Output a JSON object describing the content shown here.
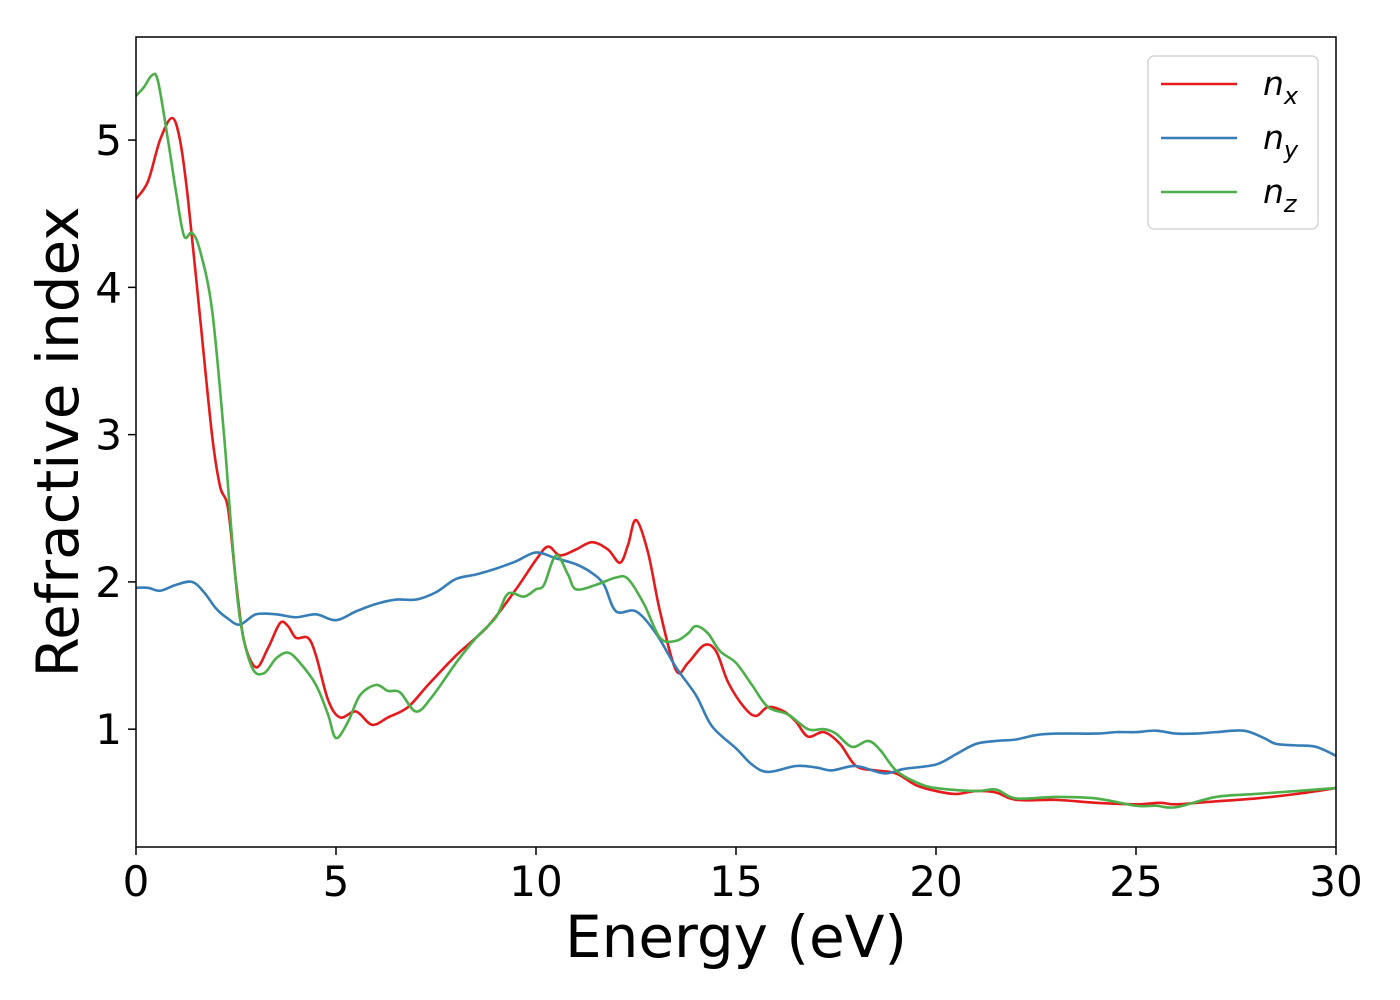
{
  "chart_data": {
    "type": "line",
    "title": "",
    "xlabel": "Energy (eV)",
    "ylabel": "Refractive index",
    "xlim": [
      0,
      30
    ],
    "ylim": [
      0.2,
      5.7
    ],
    "xticks": [
      0,
      5,
      10,
      15,
      20,
      25,
      30
    ],
    "yticks": [
      1,
      2,
      3,
      4,
      5
    ],
    "grid": false,
    "legend_position": "top-right",
    "series": [
      {
        "name": "n_x",
        "label_base": "n",
        "label_sub": "x",
        "color": "#e41a1c",
        "points": [
          [
            0,
            4.6
          ],
          [
            0.3,
            4.72
          ],
          [
            0.6,
            5.0
          ],
          [
            0.9,
            5.15
          ],
          [
            1.1,
            5.0
          ],
          [
            1.3,
            4.6
          ],
          [
            1.6,
            3.8
          ],
          [
            1.9,
            3.0
          ],
          [
            2.1,
            2.65
          ],
          [
            2.3,
            2.5
          ],
          [
            2.5,
            2.0
          ],
          [
            2.7,
            1.6
          ],
          [
            3.0,
            1.42
          ],
          [
            3.3,
            1.55
          ],
          [
            3.6,
            1.72
          ],
          [
            3.8,
            1.7
          ],
          [
            4.0,
            1.62
          ],
          [
            4.3,
            1.62
          ],
          [
            4.5,
            1.5
          ],
          [
            4.8,
            1.2
          ],
          [
            5.1,
            1.08
          ],
          [
            5.5,
            1.12
          ],
          [
            5.9,
            1.03
          ],
          [
            6.3,
            1.08
          ],
          [
            6.8,
            1.15
          ],
          [
            7.3,
            1.3
          ],
          [
            8.0,
            1.5
          ],
          [
            8.8,
            1.7
          ],
          [
            9.5,
            1.95
          ],
          [
            10.0,
            2.15
          ],
          [
            10.3,
            2.24
          ],
          [
            10.6,
            2.18
          ],
          [
            11.0,
            2.22
          ],
          [
            11.4,
            2.27
          ],
          [
            11.8,
            2.22
          ],
          [
            12.1,
            2.13
          ],
          [
            12.3,
            2.25
          ],
          [
            12.5,
            2.42
          ],
          [
            12.8,
            2.2
          ],
          [
            13.1,
            1.8
          ],
          [
            13.5,
            1.4
          ],
          [
            13.8,
            1.45
          ],
          [
            14.2,
            1.57
          ],
          [
            14.5,
            1.53
          ],
          [
            14.8,
            1.32
          ],
          [
            15.2,
            1.15
          ],
          [
            15.5,
            1.09
          ],
          [
            15.8,
            1.15
          ],
          [
            16.2,
            1.12
          ],
          [
            16.5,
            1.05
          ],
          [
            16.8,
            0.95
          ],
          [
            17.2,
            0.98
          ],
          [
            17.6,
            0.9
          ],
          [
            18.0,
            0.75
          ],
          [
            18.5,
            0.72
          ],
          [
            19.0,
            0.7
          ],
          [
            19.5,
            0.62
          ],
          [
            20.0,
            0.58
          ],
          [
            20.5,
            0.56
          ],
          [
            21.0,
            0.58
          ],
          [
            21.5,
            0.57
          ],
          [
            22.0,
            0.52
          ],
          [
            23.0,
            0.52
          ],
          [
            24.0,
            0.5
          ],
          [
            25.0,
            0.49
          ],
          [
            25.6,
            0.5
          ],
          [
            26.0,
            0.49
          ],
          [
            27.0,
            0.51
          ],
          [
            28.0,
            0.53
          ],
          [
            29.0,
            0.56
          ],
          [
            30.0,
            0.6
          ]
        ]
      },
      {
        "name": "n_y",
        "label_base": "n",
        "label_sub": "y",
        "color": "#377eb8",
        "points": [
          [
            0,
            1.96
          ],
          [
            0.3,
            1.96
          ],
          [
            0.6,
            1.94
          ],
          [
            1.0,
            1.98
          ],
          [
            1.4,
            2.0
          ],
          [
            1.7,
            1.93
          ],
          [
            2.0,
            1.82
          ],
          [
            2.3,
            1.75
          ],
          [
            2.6,
            1.71
          ],
          [
            3.0,
            1.78
          ],
          [
            3.5,
            1.78
          ],
          [
            4.0,
            1.76
          ],
          [
            4.5,
            1.78
          ],
          [
            5.0,
            1.74
          ],
          [
            5.5,
            1.8
          ],
          [
            6.0,
            1.85
          ],
          [
            6.5,
            1.88
          ],
          [
            7.0,
            1.88
          ],
          [
            7.5,
            1.93
          ],
          [
            8.0,
            2.02
          ],
          [
            8.5,
            2.05
          ],
          [
            9.0,
            2.09
          ],
          [
            9.5,
            2.14
          ],
          [
            10.0,
            2.2
          ],
          [
            10.5,
            2.16
          ],
          [
            11.0,
            2.12
          ],
          [
            11.4,
            2.06
          ],
          [
            11.7,
            1.98
          ],
          [
            12.0,
            1.8
          ],
          [
            12.5,
            1.8
          ],
          [
            13.0,
            1.65
          ],
          [
            13.5,
            1.42
          ],
          [
            14.0,
            1.23
          ],
          [
            14.4,
            1.02
          ],
          [
            15.0,
            0.87
          ],
          [
            15.4,
            0.76
          ],
          [
            15.8,
            0.71
          ],
          [
            16.5,
            0.75
          ],
          [
            17.0,
            0.74
          ],
          [
            17.4,
            0.72
          ],
          [
            18.0,
            0.75
          ],
          [
            18.7,
            0.7
          ],
          [
            19.2,
            0.73
          ],
          [
            20.0,
            0.76
          ],
          [
            20.5,
            0.83
          ],
          [
            21.0,
            0.9
          ],
          [
            21.5,
            0.92
          ],
          [
            22.0,
            0.93
          ],
          [
            22.5,
            0.96
          ],
          [
            23.0,
            0.97
          ],
          [
            24.0,
            0.97
          ],
          [
            24.5,
            0.98
          ],
          [
            25.0,
            0.98
          ],
          [
            25.5,
            0.99
          ],
          [
            26.0,
            0.97
          ],
          [
            26.5,
            0.97
          ],
          [
            27.0,
            0.98
          ],
          [
            27.7,
            0.99
          ],
          [
            28.2,
            0.94
          ],
          [
            28.5,
            0.9
          ],
          [
            29.0,
            0.89
          ],
          [
            29.5,
            0.88
          ],
          [
            30.0,
            0.82
          ]
        ]
      },
      {
        "name": "n_z",
        "label_base": "n",
        "label_sub": "z",
        "color": "#4daf4a",
        "points": [
          [
            0,
            5.3
          ],
          [
            0.2,
            5.36
          ],
          [
            0.4,
            5.44
          ],
          [
            0.55,
            5.4
          ],
          [
            0.8,
            5.0
          ],
          [
            1.0,
            4.65
          ],
          [
            1.2,
            4.35
          ],
          [
            1.4,
            4.37
          ],
          [
            1.6,
            4.25
          ],
          [
            1.9,
            3.85
          ],
          [
            2.2,
            3.0
          ],
          [
            2.4,
            2.3
          ],
          [
            2.6,
            1.75
          ],
          [
            2.9,
            1.42
          ],
          [
            3.2,
            1.38
          ],
          [
            3.5,
            1.48
          ],
          [
            3.8,
            1.52
          ],
          [
            4.1,
            1.45
          ],
          [
            4.5,
            1.3
          ],
          [
            4.8,
            1.1
          ],
          [
            5.0,
            0.94
          ],
          [
            5.3,
            1.05
          ],
          [
            5.6,
            1.23
          ],
          [
            6.0,
            1.3
          ],
          [
            6.3,
            1.26
          ],
          [
            6.6,
            1.25
          ],
          [
            7.0,
            1.12
          ],
          [
            7.4,
            1.22
          ],
          [
            8.0,
            1.45
          ],
          [
            8.5,
            1.62
          ],
          [
            9.0,
            1.76
          ],
          [
            9.3,
            1.92
          ],
          [
            9.7,
            1.9
          ],
          [
            10.0,
            1.95
          ],
          [
            10.2,
            1.98
          ],
          [
            10.5,
            2.18
          ],
          [
            10.8,
            2.05
          ],
          [
            11.0,
            1.95
          ],
          [
            11.5,
            1.98
          ],
          [
            12.0,
            2.03
          ],
          [
            12.3,
            2.02
          ],
          [
            12.7,
            1.85
          ],
          [
            13.1,
            1.62
          ],
          [
            13.5,
            1.6
          ],
          [
            13.8,
            1.65
          ],
          [
            14.0,
            1.7
          ],
          [
            14.3,
            1.65
          ],
          [
            14.6,
            1.53
          ],
          [
            15.0,
            1.45
          ],
          [
            15.4,
            1.3
          ],
          [
            15.8,
            1.15
          ],
          [
            16.3,
            1.1
          ],
          [
            16.8,
            1.0
          ],
          [
            17.2,
            1.0
          ],
          [
            17.5,
            0.97
          ],
          [
            17.9,
            0.88
          ],
          [
            18.3,
            0.92
          ],
          [
            18.6,
            0.86
          ],
          [
            19.0,
            0.72
          ],
          [
            19.5,
            0.64
          ],
          [
            20.0,
            0.6
          ],
          [
            21.0,
            0.58
          ],
          [
            21.5,
            0.59
          ],
          [
            22.0,
            0.53
          ],
          [
            23.0,
            0.54
          ],
          [
            24.0,
            0.53
          ],
          [
            25.0,
            0.48
          ],
          [
            25.5,
            0.48
          ],
          [
            26.0,
            0.47
          ],
          [
            27.0,
            0.54
          ],
          [
            28.0,
            0.56
          ],
          [
            29.0,
            0.58
          ],
          [
            30.0,
            0.6
          ]
        ]
      }
    ]
  }
}
